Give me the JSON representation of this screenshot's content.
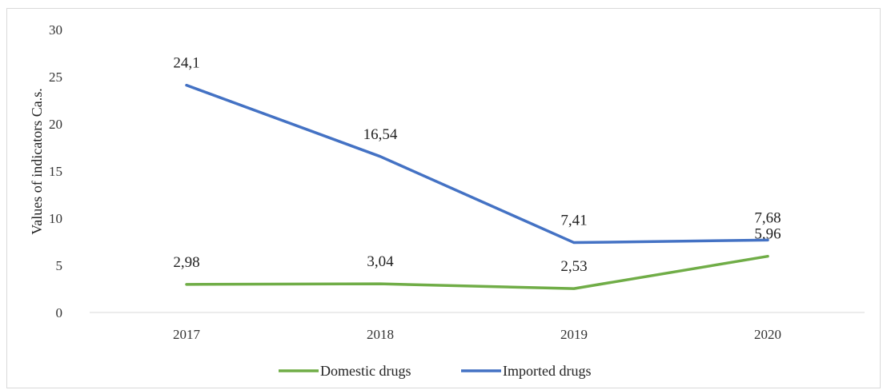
{
  "chart_data": {
    "type": "line",
    "categories": [
      "2017",
      "2018",
      "2019",
      "2020"
    ],
    "series": [
      {
        "name": "Domestic drugs",
        "values": [
          2.98,
          3.04,
          2.53,
          5.96
        ],
        "labels": [
          "2,98",
          "3,04",
          "2,53",
          "5,96"
        ],
        "color": "#70ad47"
      },
      {
        "name": "Imported drugs",
        "values": [
          24.1,
          16.54,
          7.41,
          7.68
        ],
        "labels": [
          "24,1",
          "16,54",
          "7,41",
          "7,68"
        ],
        "color": "#4472c4"
      }
    ],
    "ylabel": "Values of indicators  Ca.s.",
    "ylim": [
      0,
      30
    ],
    "yticks": [
      "0",
      "5",
      "10",
      "15",
      "20",
      "25",
      "30"
    ],
    "grid": false,
    "legend": "bottom"
  }
}
